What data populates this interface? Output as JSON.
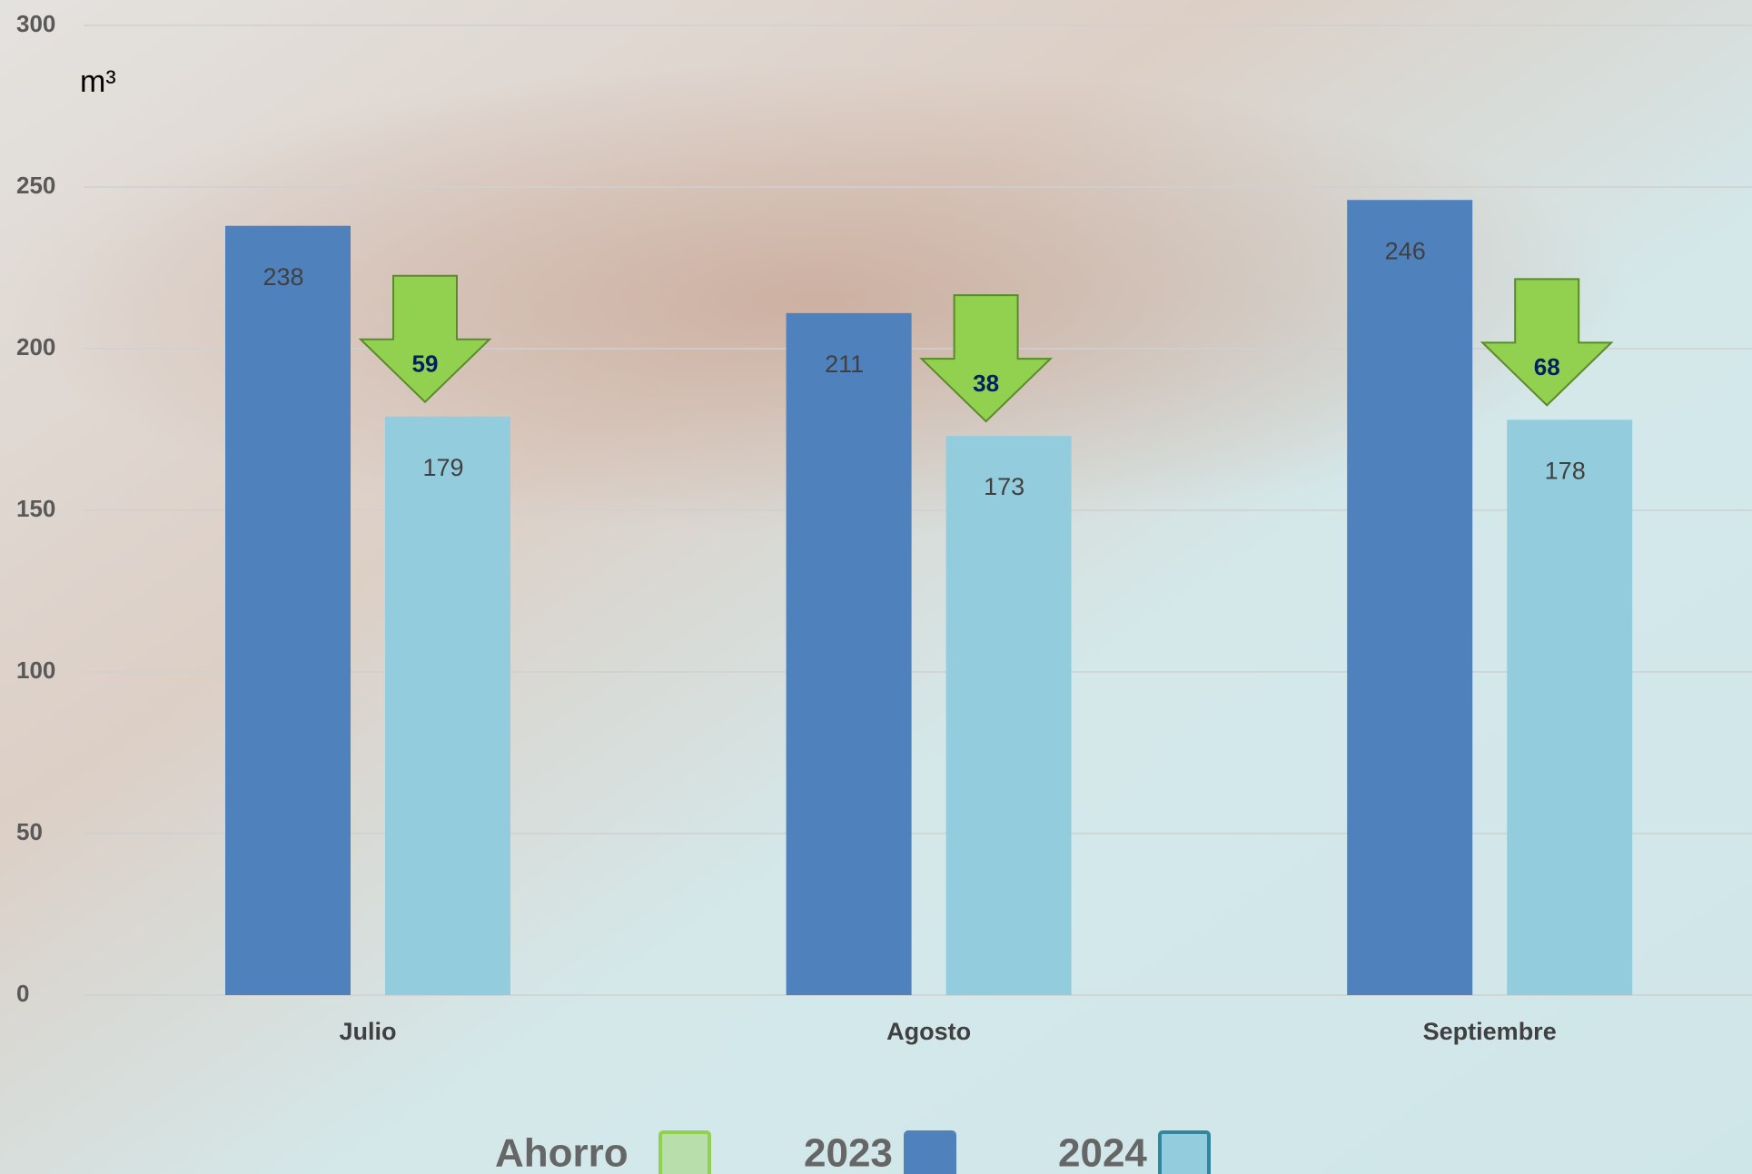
{
  "chart_data": {
    "type": "bar",
    "y_unit": "m³",
    "categories": [
      "Julio",
      "Agosto",
      "Septiembre"
    ],
    "series": [
      {
        "name": "2023",
        "color": "#4f81bd",
        "values": [
          238,
          211,
          246
        ]
      },
      {
        "name": "2024",
        "color": "#93cddd",
        "values": [
          179,
          173,
          178
        ]
      },
      {
        "name": "Ahorro",
        "color": "#92d050",
        "values": [
          59,
          38,
          68
        ]
      }
    ],
    "legend_order": [
      "Ahorro",
      "2023",
      "2024"
    ],
    "ylim": [
      0,
      300
    ],
    "yticks": [
      0,
      50,
      100,
      150,
      200,
      250,
      300
    ],
    "grid": true,
    "legend": "bottom"
  }
}
